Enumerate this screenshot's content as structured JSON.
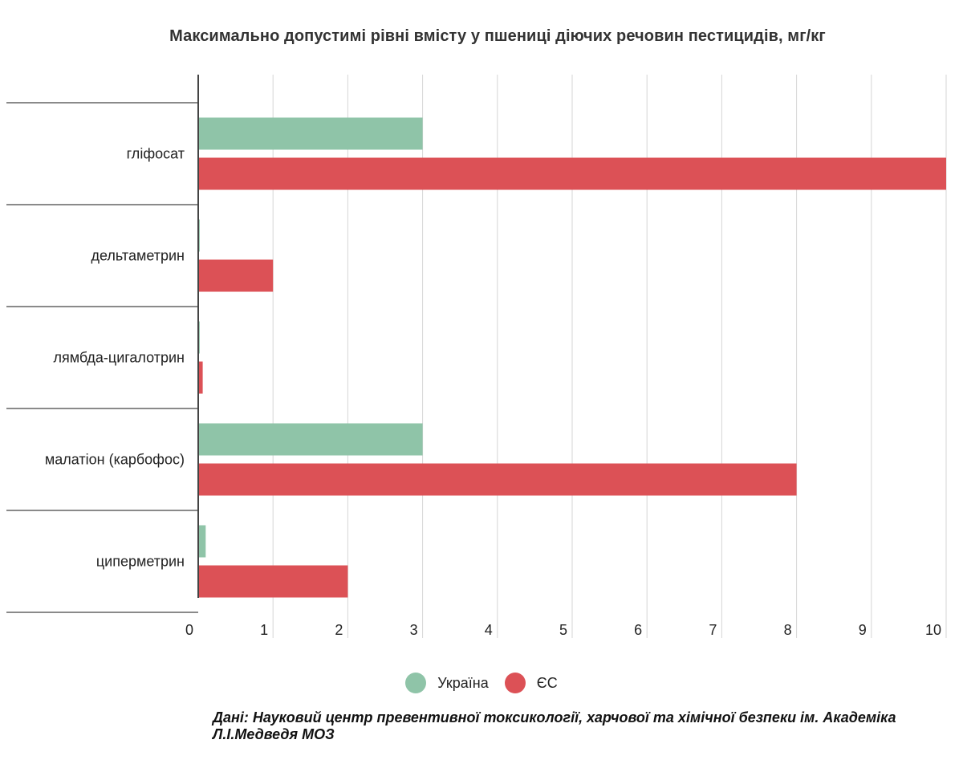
{
  "chart_data": {
    "type": "bar",
    "orientation": "horizontal",
    "title": "Максимально допустимі рівні вмісту у пшениці діючих речовин пестицидів, мг/кг",
    "categories": [
      "гліфосат",
      "дельтаметрин",
      "лямбда-цигалотрин",
      "малатіон (карбофос)",
      "циперметрин"
    ],
    "series": [
      {
        "name": "Україна",
        "color": "#8fc4a8",
        "values": [
          3,
          0.02,
          0.02,
          3,
          0.1
        ]
      },
      {
        "name": "ЄС",
        "color": "#dc5156",
        "values": [
          10,
          1,
          0.06,
          8,
          2
        ]
      }
    ],
    "xlim": [
      0,
      10
    ],
    "xticks": [
      0,
      1,
      2,
      3,
      4,
      5,
      6,
      7,
      8,
      9,
      10
    ],
    "grid": true,
    "legend_position": "bottom-center"
  },
  "source_note": "Дані: Науковий центр превентивної токсикології, харчової та хімічної безпеки ім. Академіка Л.І.Медведя МОЗ"
}
